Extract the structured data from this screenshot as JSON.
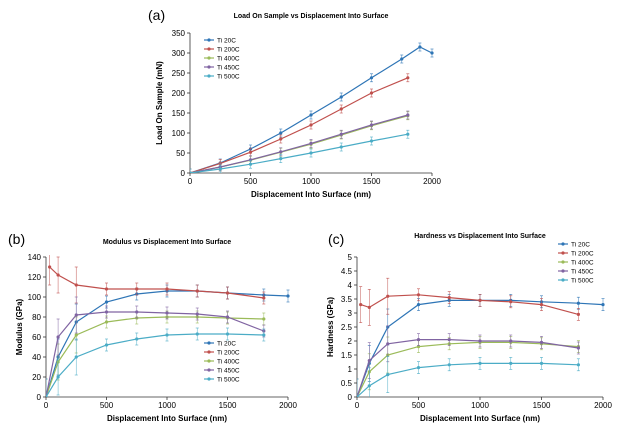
{
  "chart_data": [
    {
      "type": "line",
      "panel_label": "(a)",
      "title": "Load On Sample vs Displacement Into Surface",
      "xlabel": "Displacement Into Surface (nm)",
      "ylabel": "Load On Sample (mN)",
      "xlim": [
        0,
        2000
      ],
      "ylim": [
        0,
        350
      ],
      "xticks": [
        "0",
        "500",
        "1000",
        "1500",
        "2000"
      ],
      "yticks": [
        "0",
        "50",
        "100",
        "150",
        "200",
        "250",
        "300",
        "350"
      ],
      "grid": false,
      "legend_position": "top-left",
      "series": [
        {
          "name": "Ti 20C",
          "color": "#2e75b6",
          "x": [
            0,
            250,
            500,
            750,
            1000,
            1250,
            1500,
            1750,
            1900,
            2000
          ],
          "y": [
            0,
            25,
            60,
            100,
            145,
            190,
            238,
            285,
            315,
            300
          ]
        },
        {
          "name": "Ti 200C",
          "color": "#c0504d",
          "x": [
            0,
            250,
            500,
            750,
            1000,
            1250,
            1500,
            1800
          ],
          "y": [
            0,
            24,
            52,
            85,
            120,
            160,
            200,
            238
          ]
        },
        {
          "name": "Ti 400C",
          "color": "#9bbb59",
          "x": [
            0,
            250,
            500,
            750,
            1000,
            1250,
            1500,
            1800
          ],
          "y": [
            0,
            15,
            32,
            52,
            72,
            95,
            118,
            143
          ]
        },
        {
          "name": "Ti 450C",
          "color": "#8064a2",
          "x": [
            0,
            250,
            500,
            750,
            1000,
            1250,
            1500,
            1800
          ],
          "y": [
            0,
            15,
            33,
            53,
            74,
            97,
            120,
            145
          ]
        },
        {
          "name": "Ti 500C",
          "color": "#4bacc6",
          "x": [
            0,
            250,
            500,
            750,
            1000,
            1250,
            1500,
            1800
          ],
          "y": [
            0,
            10,
            22,
            36,
            50,
            65,
            80,
            97
          ]
        }
      ]
    },
    {
      "type": "line",
      "panel_label": "(b)",
      "title": "Modulus vs Displacement Into Surface",
      "xlabel": "Displacement Into Surface (nm)",
      "ylabel": "Modulus (GPa)",
      "xlim": [
        0,
        2000
      ],
      "ylim": [
        0,
        140
      ],
      "xticks": [
        "0",
        "500",
        "1000",
        "1500",
        "2000"
      ],
      "yticks": [
        "0",
        "20",
        "40",
        "60",
        "80",
        "100",
        "120",
        "140"
      ],
      "grid": false,
      "legend_position": "bottom-right",
      "series": [
        {
          "name": "Ti 20C",
          "color": "#2e75b6",
          "x": [
            0,
            100,
            250,
            500,
            750,
            1000,
            1250,
            1500,
            1800,
            2000
          ],
          "y": [
            0,
            40,
            75,
            95,
            103,
            106,
            106,
            104,
            102,
            101
          ]
        },
        {
          "name": "Ti 200C",
          "color": "#c0504d",
          "x": [
            30,
            100,
            250,
            500,
            750,
            1000,
            1250,
            1500,
            1800
          ],
          "y": [
            130,
            122,
            112,
            108,
            108,
            108,
            106,
            104,
            99
          ]
        },
        {
          "name": "Ti 400C",
          "color": "#9bbb59",
          "x": [
            0,
            100,
            250,
            500,
            750,
            1000,
            1250,
            1500,
            1800
          ],
          "y": [
            0,
            35,
            62,
            75,
            79,
            80,
            80,
            79,
            78
          ]
        },
        {
          "name": "Ti 450C",
          "color": "#8064a2",
          "x": [
            0,
            100,
            250,
            500,
            750,
            1000,
            1250,
            1500,
            1800
          ],
          "y": [
            0,
            60,
            82,
            85,
            85,
            84,
            83,
            80,
            66
          ]
        },
        {
          "name": "Ti 500C",
          "color": "#4bacc6",
          "x": [
            0,
            100,
            250,
            500,
            750,
            1000,
            1250,
            1500,
            1800
          ],
          "y": [
            0,
            20,
            40,
            52,
            58,
            62,
            63,
            63,
            62
          ]
        }
      ]
    },
    {
      "type": "line",
      "panel_label": "(c)",
      "title": "Hardness vs Displacement Into Surface",
      "xlabel": "Displacement Into Surface (nm)",
      "ylabel": "Hardness (GPa)",
      "xlim": [
        0,
        2000
      ],
      "ylim": [
        0,
        5
      ],
      "xticks": [
        "0",
        "500",
        "1000",
        "1500",
        "2000"
      ],
      "yticks": [
        "0",
        "0.5",
        "1",
        "1.5",
        "2",
        "2.5",
        "3",
        "3.5",
        "4",
        "4.5",
        "5"
      ],
      "grid": false,
      "legend_position": "top-right",
      "series": [
        {
          "name": "Ti 20C",
          "color": "#2e75b6",
          "x": [
            0,
            100,
            250,
            500,
            750,
            1000,
            1250,
            1500,
            1800,
            2000
          ],
          "y": [
            0,
            1.2,
            2.5,
            3.3,
            3.45,
            3.45,
            3.45,
            3.4,
            3.35,
            3.3
          ]
        },
        {
          "name": "Ti 200C",
          "color": "#c0504d",
          "x": [
            30,
            100,
            250,
            500,
            750,
            1000,
            1250,
            1500,
            1800
          ],
          "y": [
            3.3,
            3.2,
            3.6,
            3.65,
            3.55,
            3.45,
            3.4,
            3.3,
            2.95
          ]
        },
        {
          "name": "Ti 400C",
          "color": "#9bbb59",
          "x": [
            0,
            100,
            250,
            500,
            750,
            1000,
            1250,
            1500,
            1800
          ],
          "y": [
            0,
            0.9,
            1.5,
            1.8,
            1.9,
            1.95,
            1.95,
            1.9,
            1.8
          ]
        },
        {
          "name": "Ti 450C",
          "color": "#8064a2",
          "x": [
            0,
            100,
            250,
            500,
            750,
            1000,
            1250,
            1500,
            1800
          ],
          "y": [
            0,
            1.3,
            1.9,
            2.05,
            2.05,
            2.0,
            2.0,
            1.95,
            1.75
          ]
        },
        {
          "name": "Ti 500C",
          "color": "#4bacc6",
          "x": [
            0,
            100,
            250,
            500,
            750,
            1000,
            1250,
            1500,
            1800
          ],
          "y": [
            0,
            0.4,
            0.8,
            1.05,
            1.15,
            1.2,
            1.2,
            1.2,
            1.15
          ]
        }
      ]
    }
  ]
}
